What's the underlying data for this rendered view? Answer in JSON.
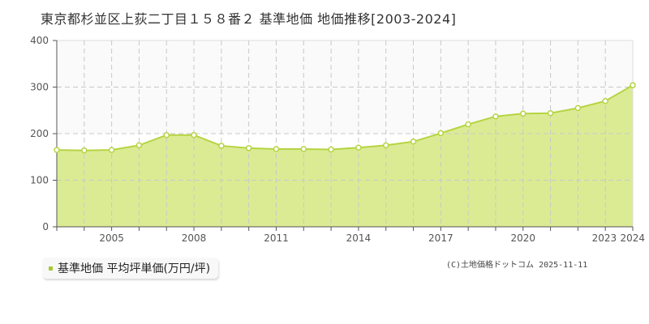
{
  "title": "東京都杉並区上荻二丁目１５８番２ 基準地価 地価推移[2003-2024]",
  "legend": {
    "label": "基準地価 平均坪単価(万円/坪)"
  },
  "copyright": "(C)土地価格ドットコム 2025-11-11",
  "colors": {
    "fill": "#dbeb94",
    "line": "#b5d442",
    "marker_stroke": "#b5d442",
    "marker_fill": "#ffffff",
    "grid": "#c8c8c8",
    "upper_band": "#fafafa"
  },
  "chart_data": {
    "type": "area",
    "title": "東京都杉並区上荻二丁目１５８番２ 基準地価 地価推移[2003-2024]",
    "xlabel": "",
    "ylabel": "",
    "x": [
      2003,
      2004,
      2005,
      2006,
      2007,
      2008,
      2009,
      2010,
      2011,
      2012,
      2013,
      2014,
      2015,
      2016,
      2017,
      2018,
      2019,
      2020,
      2021,
      2022,
      2023,
      2024
    ],
    "series": [
      {
        "name": "基準地価 平均坪単価(万円/坪)",
        "values": [
          165,
          164,
          165,
          175,
          197,
          197,
          174,
          169,
          167,
          167,
          166,
          170,
          175,
          183,
          201,
          220,
          237,
          243,
          244,
          255,
          270,
          304
        ]
      }
    ],
    "x_tick_labels": [
      "2005",
      "2008",
      "2011",
      "2014",
      "2017",
      "2020",
      "2023",
      "2024"
    ],
    "y_tick_labels": [
      "0",
      "100",
      "200",
      "300",
      "400"
    ],
    "ylim": [
      0,
      400
    ],
    "grid": true,
    "legend_position": "bottom-left"
  }
}
